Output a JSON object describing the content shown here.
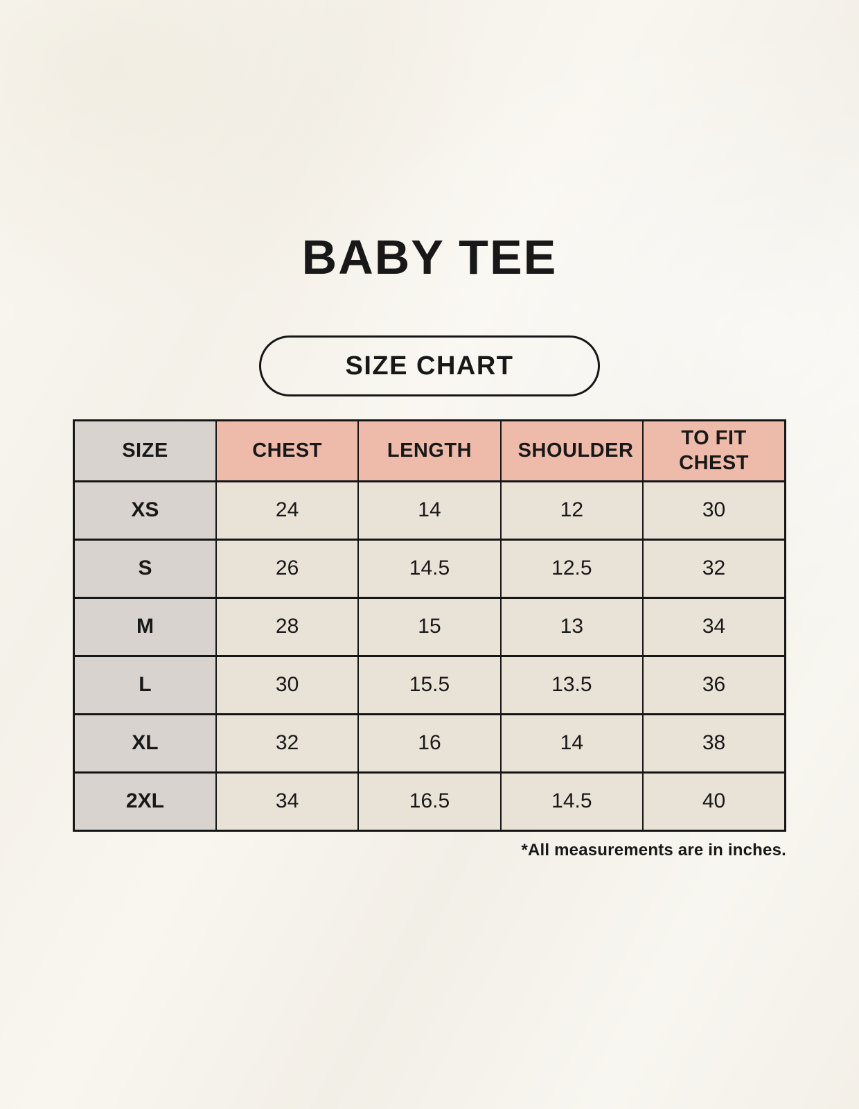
{
  "page": {
    "title": "BABY TEE",
    "badge_label": "SIZE CHART",
    "note": "*All measurements are in inches."
  },
  "colors": {
    "background": "#f6f3ec",
    "header_pink": "#eebbab",
    "size_column_gray": "#d8d3cf",
    "cell_cream": "#e9e2d7",
    "border_black": "#161616",
    "text_black": "#181818"
  },
  "chart_data": {
    "type": "table",
    "title": "BABY TEE",
    "subtitle": "SIZE CHART",
    "columns": [
      "SIZE",
      "CHEST",
      "LENGTH",
      "SHOULDER",
      "TO FIT CHEST"
    ],
    "rows": [
      [
        "XS",
        "24",
        "14",
        "12",
        "30"
      ],
      [
        "S",
        "26",
        "14.5",
        "12.5",
        "32"
      ],
      [
        "M",
        "28",
        "15",
        "13",
        "34"
      ],
      [
        "L",
        "30",
        "15.5",
        "13.5",
        "36"
      ],
      [
        "XL",
        "32",
        "16",
        "14",
        "38"
      ],
      [
        "2XL",
        "34",
        "16.5",
        "14.5",
        "40"
      ]
    ],
    "units_note": "*All measurements are in inches.",
    "layout": {
      "header_fill": "pink",
      "size_column_fill": "gray",
      "data_cell_fill": "cream",
      "grid": "on"
    }
  }
}
